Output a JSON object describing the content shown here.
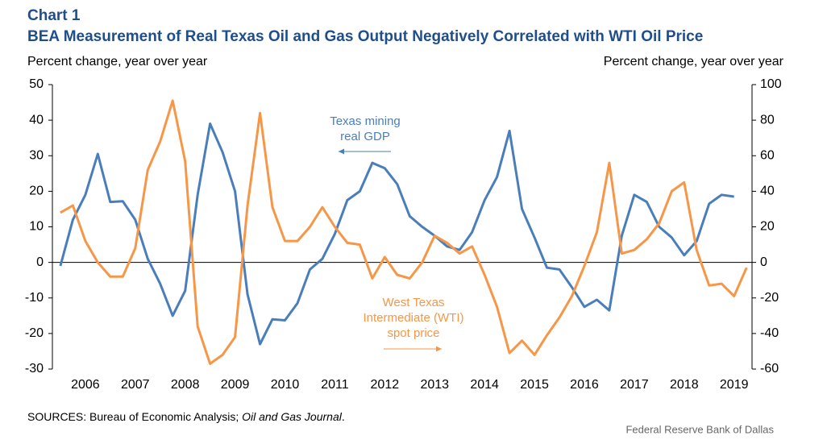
{
  "chart_data": {
    "type": "line",
    "label": "Chart 1",
    "title": "BEA Measurement of Real Texas Oil and Gas Output Negatively Correlated with WTI Oil Price",
    "y_label": "Percent change, year over year",
    "y2_label": "Percent change, year over year",
    "x": [
      2006,
      2006.25,
      2006.5,
      2006.75,
      2007,
      2007.25,
      2007.5,
      2007.75,
      2008,
      2008.25,
      2008.5,
      2008.75,
      2009,
      2009.25,
      2009.5,
      2009.75,
      2010,
      2010.25,
      2010.5,
      2010.75,
      2011,
      2011.25,
      2011.5,
      2011.75,
      2012,
      2012.25,
      2012.5,
      2012.75,
      2013,
      2013.25,
      2013.5,
      2013.75,
      2014,
      2014.25,
      2014.5,
      2014.75,
      2015,
      2015.25,
      2015.5,
      2015.75,
      2016,
      2016.25,
      2016.5,
      2016.75,
      2017,
      2017.25,
      2017.5,
      2017.75,
      2018,
      2018.25,
      2018.5,
      2018.75,
      2019,
      2019.25,
      2019.5,
      2019.75
    ],
    "series": [
      {
        "name": "Texas mining real GDP",
        "color": "#4a7ebb",
        "axis": "y",
        "values": [
          -1,
          12,
          19,
          30.5,
          17,
          17.2,
          12,
          1,
          -6,
          -15,
          -8,
          19,
          39,
          31,
          20,
          -9,
          -23,
          -16,
          -16.3,
          -11.5,
          -2,
          1,
          8,
          17.5,
          20,
          28,
          26.5,
          22,
          13,
          10,
          7.5,
          4.5,
          3.5,
          8.5,
          17.5,
          24,
          37,
          15,
          7,
          -1.5,
          -2,
          -7,
          -12.5,
          -10.5,
          -13.5,
          7.5,
          19,
          17,
          10,
          7,
          2,
          6,
          16.5,
          19,
          18.5,
          null
        ]
      },
      {
        "name": "West Texas Intermediate (WTI) spot price",
        "color": "#f79646",
        "axis": "y2",
        "values": [
          28,
          32,
          12,
          0,
          -8,
          -8,
          8,
          52,
          68,
          91,
          57,
          -36,
          -57,
          -52,
          -42,
          32,
          84,
          31,
          12,
          12,
          20,
          31,
          20,
          11,
          10,
          -9,
          3,
          -7,
          -9,
          0,
          15,
          11,
          5,
          9,
          -7,
          -25,
          -51,
          -44,
          -52,
          -41,
          -31,
          -19,
          -2,
          17,
          56,
          5,
          7,
          13,
          22,
          40,
          45,
          7,
          -13,
          -12,
          -19,
          -3
        ]
      }
    ],
    "annotations": [
      {
        "lines": [
          "Texas mining",
          "real GDP"
        ],
        "color": "#4a7ebb",
        "arrow": "left"
      },
      {
        "lines": [
          "West Texas",
          "Intermediate (WTI)",
          "spot price"
        ],
        "color": "#f79646",
        "arrow": "right"
      }
    ],
    "xlim": [
      2005.84,
      2019.86
    ],
    "xticks": [
      {
        "value": 2006.5,
        "label": "2006"
      },
      {
        "value": 2007.5,
        "label": "2007"
      },
      {
        "value": 2008.5,
        "label": "2008"
      },
      {
        "value": 2009.5,
        "label": "2009"
      },
      {
        "value": 2010.5,
        "label": "2010"
      },
      {
        "value": 2011.5,
        "label": "2011"
      },
      {
        "value": 2012.5,
        "label": "2012"
      },
      {
        "value": 2013.5,
        "label": "2013"
      },
      {
        "value": 2014.5,
        "label": "2014"
      },
      {
        "value": 2015.5,
        "label": "2015"
      },
      {
        "value": 2016.5,
        "label": "2016"
      },
      {
        "value": 2017.5,
        "label": "2017"
      },
      {
        "value": 2018.5,
        "label": "2018"
      },
      {
        "value": 2019.5,
        "label": "2019"
      }
    ],
    "ylim": [
      -30,
      50
    ],
    "yticks": [
      -30,
      -20,
      -10,
      0,
      10,
      20,
      30,
      40,
      50
    ],
    "y2lim": [
      -60,
      100
    ],
    "y2ticks": [
      -60,
      -40,
      -20,
      0,
      20,
      40,
      60,
      80,
      100
    ],
    "sources": [
      "SOURCES: Bureau of Economic Analysis; ",
      "Oil and Gas Journal",
      "."
    ],
    "credit": "Federal Reserve Bank of Dallas"
  }
}
